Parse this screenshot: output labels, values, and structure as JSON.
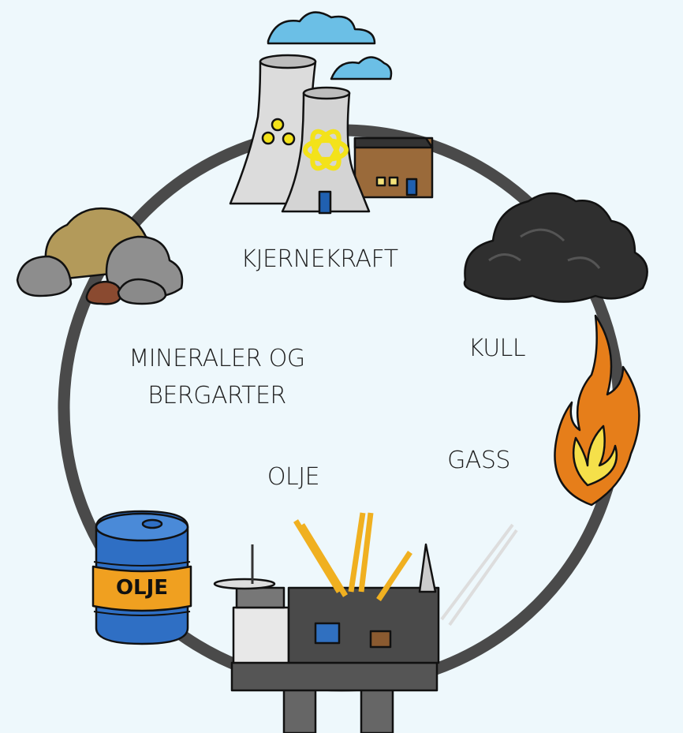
{
  "nodes": [
    {
      "label": "KJERNEKRAFT"
    },
    {
      "label": "KULL"
    },
    {
      "label": [
        "MINERALER OG",
        "BERGARTER"
      ]
    },
    {
      "label": "GASS"
    },
    {
      "label": "OLJE"
    }
  ],
  "barrel_label": "OLJE"
}
